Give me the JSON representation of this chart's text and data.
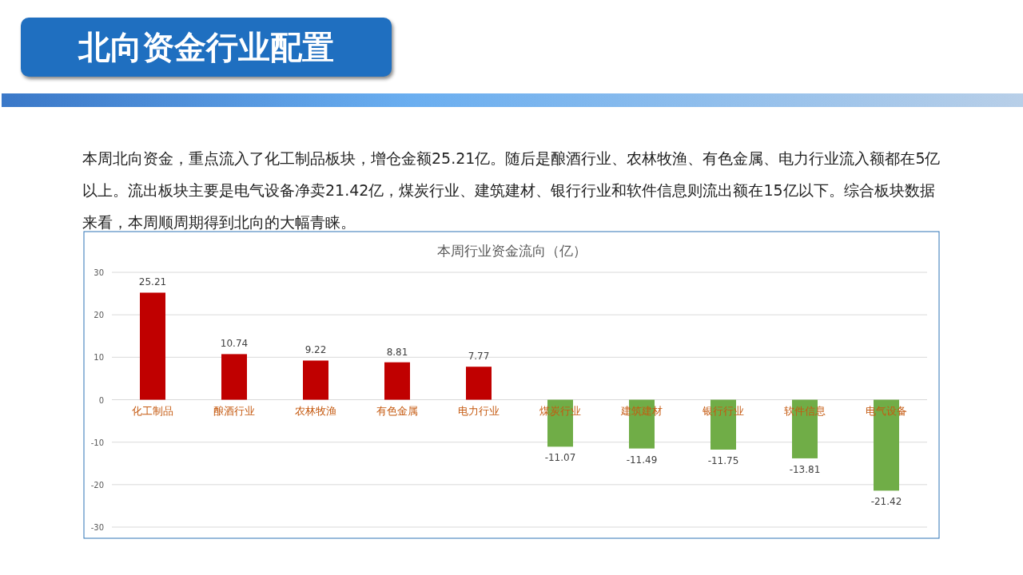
{
  "chart_data": {
    "type": "bar",
    "title": "本周行业资金流向（亿）",
    "annotations": [
      "北向资金行业配置",
      "本周北向资金，重点流入了化工制品板块，增仓金额25.21亿。随后是酿酒行业、农林牧渔、有色金属、电力行业流入额都在5亿以上。流出板块主要是电气设备净卖21.42亿，煤炭行业、建筑建材、银行行业和软件信息则流出额在15亿以下。综合板块数据来看，本周顺周期得到北向的大幅青睐。"
    ],
    "categories": [
      "化工制品",
      "酿酒行业",
      "农林牧渔",
      "有色金属",
      "电力行业",
      "煤炭行业",
      "建筑建材",
      "银行行业",
      "软件信息",
      "电气设备"
    ],
    "values": [
      25.21,
      10.74,
      9.22,
      8.81,
      7.77,
      -11.07,
      -11.49,
      -11.75,
      -13.81,
      -21.42
    ],
    "colors": [
      "#c00000",
      "#c00000",
      "#c00000",
      "#c00000",
      "#c00000",
      "#70ad47",
      "#70ad47",
      "#70ad47",
      "#70ad47",
      "#70ad47"
    ],
    "ylim": [
      -30,
      30
    ],
    "yticks": [
      -30,
      -20,
      -10,
      0,
      10,
      20,
      30
    ],
    "grid": "y",
    "data_labels": true
  }
}
